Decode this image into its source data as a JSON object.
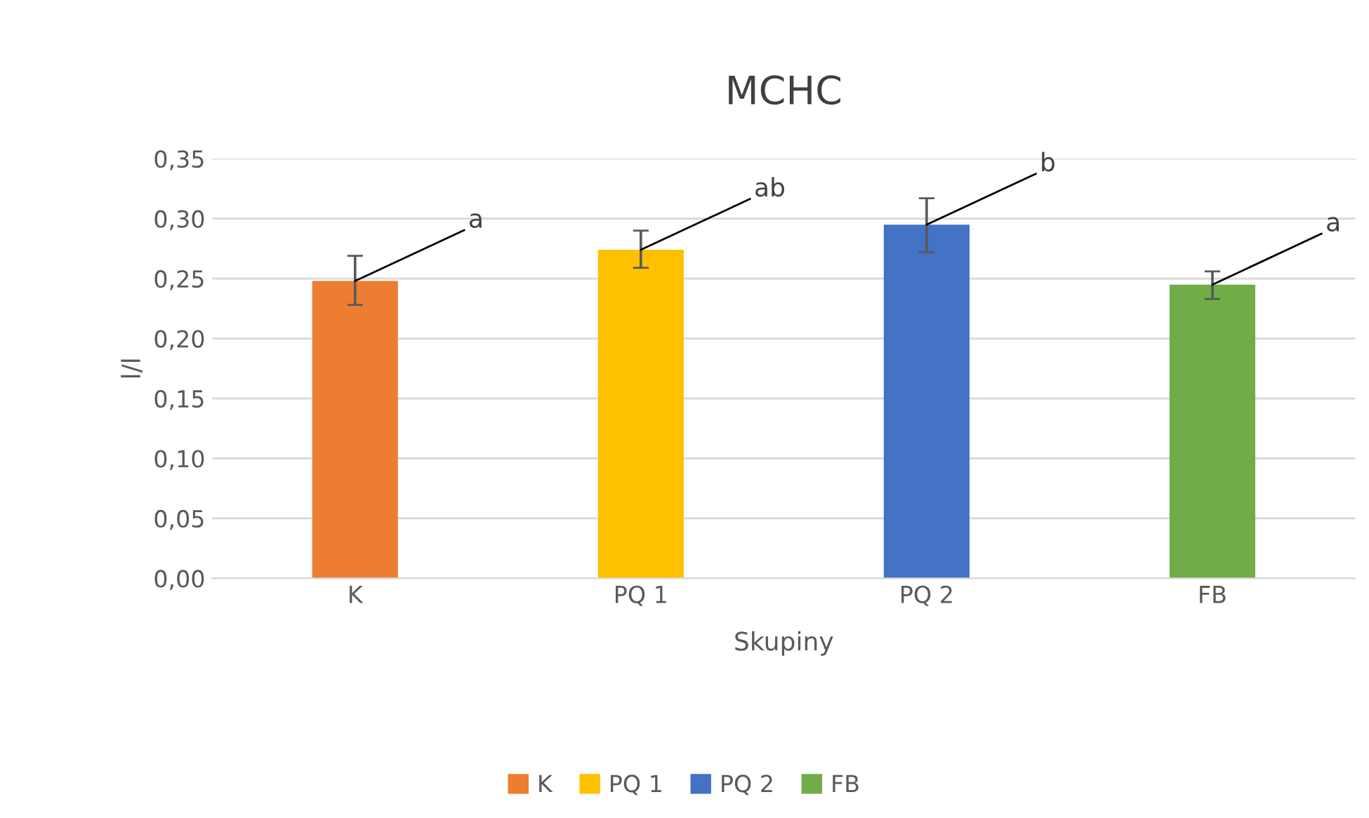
{
  "chart_data": {
    "type": "bar",
    "title": "MCHC",
    "xlabel": "Skupiny",
    "ylabel": "l/l",
    "categories": [
      "K",
      "PQ 1",
      "PQ 2",
      "FB"
    ],
    "series": [
      {
        "name": "K",
        "color": "#ed7d31",
        "values": [
          0.248,
          null,
          null,
          null
        ],
        "errors": [
          [
            0.228,
            0.269
          ],
          null,
          null,
          null
        ]
      },
      {
        "name": "PQ 1",
        "color": "#ffc000",
        "values": [
          null,
          0.274,
          null,
          null
        ],
        "errors": [
          null,
          [
            0.259,
            0.29
          ],
          null,
          null
        ]
      },
      {
        "name": "PQ 2",
        "color": "#4472c4",
        "values": [
          null,
          null,
          0.295,
          null
        ],
        "errors": [
          null,
          null,
          [
            0.272,
            0.317
          ],
          null
        ]
      },
      {
        "name": "FB",
        "color": "#70ad47",
        "values": [
          null,
          null,
          null,
          0.245
        ],
        "errors": [
          null,
          null,
          null,
          [
            0.233,
            0.256
          ]
        ]
      }
    ],
    "ylim": [
      0,
      0.35
    ],
    "yticks": [
      {
        "value": 0,
        "label": "0,00"
      },
      {
        "value": 0.05,
        "label": "0,05"
      },
      {
        "value": 0.1,
        "label": "0,10"
      },
      {
        "value": 0.15,
        "label": "0,15"
      },
      {
        "value": 0.2,
        "label": "0,20"
      },
      {
        "value": 0.25,
        "label": "0,25"
      },
      {
        "value": 0.3,
        "label": "0,30"
      },
      {
        "value": 0.35,
        "label": "0,35"
      }
    ],
    "grid": "y",
    "legend": "bottom",
    "annotations": [
      {
        "text": "a",
        "x": "K",
        "y": 0.248
      },
      {
        "text": "ab",
        "x": "PQ 1",
        "y": 0.274
      },
      {
        "text": "b",
        "x": "PQ 2",
        "y": 0.295
      },
      {
        "text": "a",
        "x": "FB",
        "y": 0.245
      }
    ]
  }
}
